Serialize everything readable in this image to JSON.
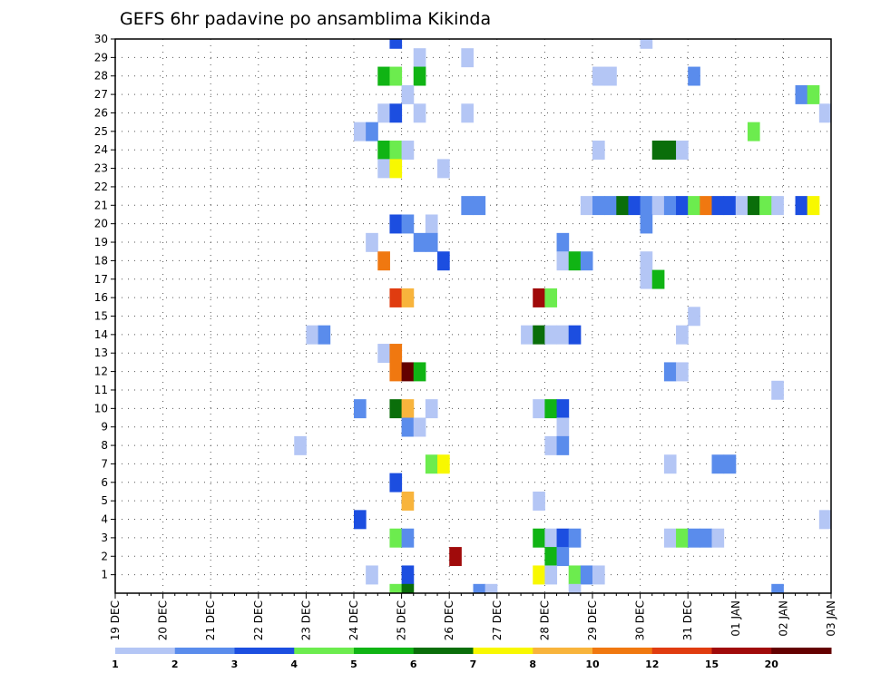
{
  "chart_data": {
    "type": "heatmap",
    "title": "GEFS 6hr padavine po ansamblima Kikinda",
    "xlabel": "",
    "ylabel": "",
    "y_ticks": [
      1,
      2,
      3,
      4,
      5,
      6,
      7,
      8,
      9,
      10,
      11,
      12,
      13,
      14,
      15,
      16,
      17,
      18,
      19,
      20,
      21,
      22,
      23,
      24,
      25,
      26,
      27,
      28,
      29,
      30
    ],
    "y_range": [
      0,
      30
    ],
    "x_ticks": [
      "19 DEC",
      "20 DEC",
      "21 DEC",
      "22 DEC",
      "23 DEC",
      "24 DEC",
      "25 DEC",
      "26 DEC",
      "27 DEC",
      "28 DEC",
      "29 DEC",
      "30 DEC",
      "31 DEC",
      "01 JAN",
      "02 JAN",
      "03 JAN"
    ],
    "time_step": "6hr",
    "x_range_steps": [
      0,
      60
    ],
    "grid": "dotted",
    "colorbar": {
      "levels": [
        1,
        2,
        3,
        4,
        5,
        6,
        7,
        8,
        10,
        12,
        15,
        20
      ],
      "colors": [
        "#b4c6f5",
        "#5a8cec",
        "#1c4ee0",
        "#6cec4e",
        "#10b414",
        "#0a6e0a",
        "#f8f800",
        "#f8b43c",
        "#f07810",
        "#e03c10",
        "#a00a0a",
        "#640000"
      ]
    },
    "cells": [
      {
        "m": 30,
        "t": 23.5,
        "v": 3
      },
      {
        "m": 30,
        "t": 44.5,
        "v": 1
      },
      {
        "m": 29,
        "t": 25.5,
        "v": 1
      },
      {
        "m": 29,
        "t": 29.5,
        "v": 1
      },
      {
        "m": 28,
        "t": 22.5,
        "v": 5
      },
      {
        "m": 28,
        "t": 23.5,
        "v": 4
      },
      {
        "m": 28,
        "t": 25.5,
        "v": 5
      },
      {
        "m": 28,
        "t": 40.5,
        "v": 1
      },
      {
        "m": 28,
        "t": 41.5,
        "v": 1
      },
      {
        "m": 28,
        "t": 48.5,
        "v": 2
      },
      {
        "m": 27,
        "t": 24.5,
        "v": 1
      },
      {
        "m": 27,
        "t": 57.5,
        "v": 2
      },
      {
        "m": 27,
        "t": 58.5,
        "v": 4
      },
      {
        "m": 26,
        "t": 22.5,
        "v": 1
      },
      {
        "m": 26,
        "t": 23.5,
        "v": 3
      },
      {
        "m": 26,
        "t": 25.5,
        "v": 1
      },
      {
        "m": 26,
        "t": 29.5,
        "v": 1
      },
      {
        "m": 26,
        "t": 59.5,
        "v": 1
      },
      {
        "m": 25,
        "t": 20.5,
        "v": 1
      },
      {
        "m": 25,
        "t": 21.5,
        "v": 2
      },
      {
        "m": 25,
        "t": 53.5,
        "v": 4
      },
      {
        "m": 24,
        "t": 22.5,
        "v": 5
      },
      {
        "m": 24,
        "t": 23.5,
        "v": 4
      },
      {
        "m": 24,
        "t": 24.5,
        "v": 1
      },
      {
        "m": 24,
        "t": 40.5,
        "v": 1
      },
      {
        "m": 24,
        "t": 45.5,
        "v": 6
      },
      {
        "m": 24,
        "t": 46.5,
        "v": 6
      },
      {
        "m": 24,
        "t": 47.5,
        "v": 1
      },
      {
        "m": 23,
        "t": 22.5,
        "v": 1
      },
      {
        "m": 23,
        "t": 23.5,
        "v": 7
      },
      {
        "m": 23,
        "t": 27.5,
        "v": 1
      },
      {
        "m": 21,
        "t": 29.5,
        "v": 2
      },
      {
        "m": 21,
        "t": 30.5,
        "v": 2
      },
      {
        "m": 21,
        "t": 39.5,
        "v": 1
      },
      {
        "m": 21,
        "t": 40.5,
        "v": 2
      },
      {
        "m": 21,
        "t": 41.5,
        "v": 2
      },
      {
        "m": 21,
        "t": 42.5,
        "v": 6
      },
      {
        "m": 21,
        "t": 43.5,
        "v": 3
      },
      {
        "m": 21,
        "t": 44.5,
        "v": 2
      },
      {
        "m": 21,
        "t": 45.5,
        "v": 1
      },
      {
        "m": 21,
        "t": 46.5,
        "v": 2
      },
      {
        "m": 21,
        "t": 47.5,
        "v": 3
      },
      {
        "m": 21,
        "t": 48.5,
        "v": 4
      },
      {
        "m": 21,
        "t": 49.5,
        "v": 10
      },
      {
        "m": 21,
        "t": 50.5,
        "v": 3
      },
      {
        "m": 21,
        "t": 51.5,
        "v": 3
      },
      {
        "m": 21,
        "t": 52.5,
        "v": 1
      },
      {
        "m": 21,
        "t": 53.5,
        "v": 6
      },
      {
        "m": 21,
        "t": 54.5,
        "v": 4
      },
      {
        "m": 21,
        "t": 55.5,
        "v": 1
      },
      {
        "m": 21,
        "t": 57.5,
        "v": 3
      },
      {
        "m": 21,
        "t": 58.5,
        "v": 7
      },
      {
        "m": 20,
        "t": 23.5,
        "v": 3
      },
      {
        "m": 20,
        "t": 24.5,
        "v": 2
      },
      {
        "m": 20,
        "t": 26.5,
        "v": 1
      },
      {
        "m": 20,
        "t": 44.5,
        "v": 2
      },
      {
        "m": 19,
        "t": 21.5,
        "v": 1
      },
      {
        "m": 19,
        "t": 25.5,
        "v": 2
      },
      {
        "m": 19,
        "t": 26.5,
        "v": 2
      },
      {
        "m": 19,
        "t": 37.5,
        "v": 2
      },
      {
        "m": 18,
        "t": 22.5,
        "v": 10
      },
      {
        "m": 18,
        "t": 27.5,
        "v": 3
      },
      {
        "m": 18,
        "t": 37.5,
        "v": 1
      },
      {
        "m": 18,
        "t": 38.5,
        "v": 5
      },
      {
        "m": 18,
        "t": 39.5,
        "v": 2
      },
      {
        "m": 18,
        "t": 44.5,
        "v": 1
      },
      {
        "m": 17,
        "t": 44.5,
        "v": 1
      },
      {
        "m": 17,
        "t": 45.5,
        "v": 5
      },
      {
        "m": 16,
        "t": 23.5,
        "v": 12
      },
      {
        "m": 16,
        "t": 24.5,
        "v": 8
      },
      {
        "m": 16,
        "t": 35.5,
        "v": 15
      },
      {
        "m": 16,
        "t": 36.5,
        "v": 4
      },
      {
        "m": 15,
        "t": 48.5,
        "v": 1
      },
      {
        "m": 14,
        "t": 16.5,
        "v": 1
      },
      {
        "m": 14,
        "t": 17.5,
        "v": 2
      },
      {
        "m": 14,
        "t": 34.5,
        "v": 1
      },
      {
        "m": 14,
        "t": 35.5,
        "v": 6
      },
      {
        "m": 14,
        "t": 36.5,
        "v": 1
      },
      {
        "m": 14,
        "t": 37.5,
        "v": 1
      },
      {
        "m": 14,
        "t": 38.5,
        "v": 3
      },
      {
        "m": 14,
        "t": 47.5,
        "v": 1
      },
      {
        "m": 13,
        "t": 22.5,
        "v": 1
      },
      {
        "m": 13,
        "t": 23.5,
        "v": 10
      },
      {
        "m": 12,
        "t": 23.5,
        "v": 10
      },
      {
        "m": 12,
        "t": 24.5,
        "v": 20
      },
      {
        "m": 12,
        "t": 25.5,
        "v": 5
      },
      {
        "m": 12,
        "t": 46.5,
        "v": 2
      },
      {
        "m": 12,
        "t": 47.5,
        "v": 1
      },
      {
        "m": 11,
        "t": 55.5,
        "v": 1
      },
      {
        "m": 10,
        "t": 20.5,
        "v": 2
      },
      {
        "m": 10,
        "t": 23.5,
        "v": 6
      },
      {
        "m": 10,
        "t": 24.5,
        "v": 8
      },
      {
        "m": 10,
        "t": 26.5,
        "v": 1
      },
      {
        "m": 10,
        "t": 35.5,
        "v": 1
      },
      {
        "m": 10,
        "t": 36.5,
        "v": 5
      },
      {
        "m": 10,
        "t": 37.5,
        "v": 3
      },
      {
        "m": 9,
        "t": 24.5,
        "v": 2
      },
      {
        "m": 9,
        "t": 25.5,
        "v": 1
      },
      {
        "m": 9,
        "t": 37.5,
        "v": 1
      },
      {
        "m": 8,
        "t": 15.5,
        "v": 1
      },
      {
        "m": 8,
        "t": 36.5,
        "v": 1
      },
      {
        "m": 8,
        "t": 37.5,
        "v": 2
      },
      {
        "m": 7,
        "t": 26.5,
        "v": 4
      },
      {
        "m": 7,
        "t": 27.5,
        "v": 7
      },
      {
        "m": 7,
        "t": 46.5,
        "v": 1
      },
      {
        "m": 7,
        "t": 50.5,
        "v": 2
      },
      {
        "m": 7,
        "t": 51.5,
        "v": 2
      },
      {
        "m": 6,
        "t": 23.5,
        "v": 3
      },
      {
        "m": 5,
        "t": 24.5,
        "v": 8
      },
      {
        "m": 5,
        "t": 35.5,
        "v": 1
      },
      {
        "m": 4,
        "t": 20.5,
        "v": 3
      },
      {
        "m": 4,
        "t": 59.5,
        "v": 1
      },
      {
        "m": 3,
        "t": 23.5,
        "v": 4
      },
      {
        "m": 3,
        "t": 24.5,
        "v": 2
      },
      {
        "m": 3,
        "t": 35.5,
        "v": 5
      },
      {
        "m": 3,
        "t": 36.5,
        "v": 1
      },
      {
        "m": 3,
        "t": 37.5,
        "v": 3
      },
      {
        "m": 3,
        "t": 38.5,
        "v": 2
      },
      {
        "m": 3,
        "t": 46.5,
        "v": 1
      },
      {
        "m": 3,
        "t": 47.5,
        "v": 4
      },
      {
        "m": 3,
        "t": 48.5,
        "v": 2
      },
      {
        "m": 3,
        "t": 49.5,
        "v": 2
      },
      {
        "m": 3,
        "t": 50.5,
        "v": 1
      },
      {
        "m": 2,
        "t": 28.5,
        "v": 15
      },
      {
        "m": 2,
        "t": 36.5,
        "v": 5
      },
      {
        "m": 2,
        "t": 37.5,
        "v": 2
      },
      {
        "m": 1,
        "t": 21.5,
        "v": 1
      },
      {
        "m": 1,
        "t": 24.5,
        "v": 3
      },
      {
        "m": 1,
        "t": 35.5,
        "v": 7
      },
      {
        "m": 1,
        "t": 36.5,
        "v": 1
      },
      {
        "m": 1,
        "t": 38.5,
        "v": 4
      },
      {
        "m": 1,
        "t": 39.5,
        "v": 2
      },
      {
        "m": 1,
        "t": 40.5,
        "v": 1
      },
      {
        "m": 0,
        "t": 23.5,
        "v": 4
      },
      {
        "m": 0,
        "t": 24.5,
        "v": 6
      },
      {
        "m": 0,
        "t": 30.5,
        "v": 2
      },
      {
        "m": 0,
        "t": 31.5,
        "v": 1
      },
      {
        "m": 0,
        "t": 38.5,
        "v": 1
      },
      {
        "m": 0,
        "t": 55.5,
        "v": 2
      }
    ]
  }
}
